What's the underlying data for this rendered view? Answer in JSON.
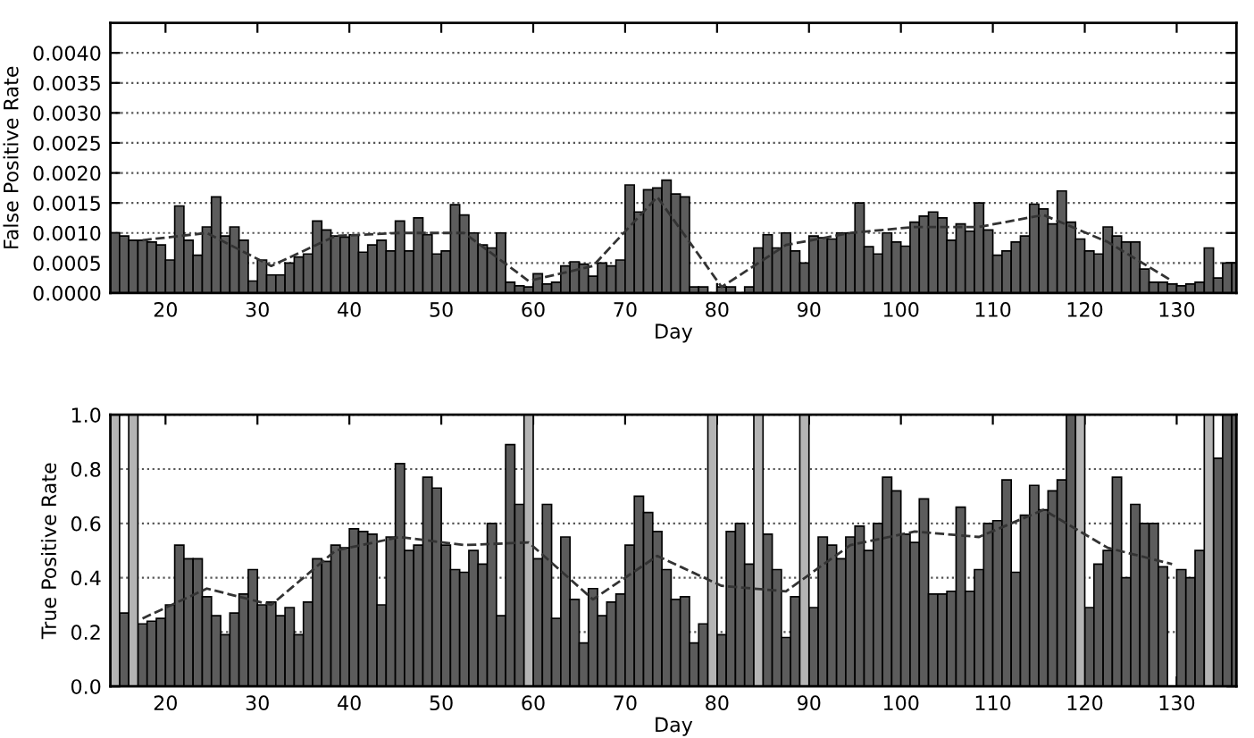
{
  "chart_data": [
    {
      "type": "bar",
      "xlabel": "Day",
      "ylabel": "False Positive Rate",
      "xlim": [
        14,
        136.5
      ],
      "ylim": [
        0,
        0.0045
      ],
      "xticks": [
        20,
        30,
        40,
        50,
        60,
        70,
        80,
        90,
        100,
        110,
        120,
        130
      ],
      "yticks": [
        {
          "value": 0,
          "label": "0.0000"
        },
        {
          "value": 0.0005,
          "label": "0.0005"
        },
        {
          "value": 0.001,
          "label": "0.0010"
        },
        {
          "value": 0.0015,
          "label": "0.0015"
        },
        {
          "value": 0.002,
          "label": "0.0020"
        },
        {
          "value": 0.0025,
          "label": "0.0025"
        },
        {
          "value": 0.003,
          "label": "0.0030"
        },
        {
          "value": 0.0035,
          "label": "0.0035"
        },
        {
          "value": 0.004,
          "label": "0.0040"
        }
      ],
      "grid": "y",
      "x": [
        14,
        15,
        16,
        17,
        18,
        19,
        20,
        21,
        22,
        23,
        24,
        25,
        26,
        27,
        28,
        29,
        30,
        31,
        32,
        33,
        34,
        35,
        36,
        37,
        38,
        39,
        40,
        41,
        42,
        43,
        44,
        45,
        46,
        47,
        48,
        49,
        50,
        51,
        52,
        53,
        54,
        55,
        56,
        57,
        58,
        59,
        60,
        61,
        62,
        63,
        64,
        65,
        66,
        67,
        68,
        69,
        70,
        71,
        72,
        73,
        74,
        75,
        76,
        77,
        78,
        79,
        80,
        81,
        82,
        83,
        84,
        85,
        86,
        87,
        88,
        89,
        90,
        91,
        92,
        93,
        94,
        95,
        96,
        97,
        98,
        99,
        100,
        101,
        102,
        103,
        104,
        105,
        106,
        107,
        108,
        109,
        110,
        111,
        112,
        113,
        114,
        115,
        116,
        117,
        118,
        119,
        120,
        121,
        122,
        123,
        124,
        125,
        126,
        127,
        128,
        129,
        130,
        131,
        132,
        133,
        134,
        135,
        136
      ],
      "series": [
        {
          "color": "#5c5c5c",
          "values": [
            0.001,
            0.00095,
            0.00088,
            0.00088,
            0.00085,
            0.0008,
            0.00055,
            0.00145,
            0.00088,
            0.00063,
            0.0011,
            0.0016,
            0.00095,
            0.0011,
            0.00088,
            0.0002,
            0.00055,
            0.0003,
            0.0003,
            0.0005,
            0.0006,
            0.00065,
            0.0012,
            0.00105,
            0.00095,
            0.00093,
            0.00097,
            0.00068,
            0.0008,
            0.00088,
            0.0007,
            0.0012,
            0.0007,
            0.00125,
            0.00097,
            0.00065,
            0.0007,
            0.00147,
            0.0013,
            0.001,
            0.0008,
            0.00075,
            0.001,
            0.00018,
            0.00012,
            0.0001,
            0.00032,
            0.00015,
            0.00018,
            0.00045,
            0.00052,
            0.00048,
            0.00028,
            0.0005,
            0.00045,
            0.00055,
            0.0018,
            0.00135,
            0.00172,
            0.00175,
            0.00188,
            0.00165,
            0.0016,
            0.0001,
            0.0001,
            null,
            0.0001,
            0.0001,
            null,
            0.0001,
            0.00075,
            0.00097,
            0.00075,
            0.001,
            0.0007,
            0.0005,
            0.00095,
            0.00092,
            0.0009,
            0.001,
            0.001,
            0.0015,
            0.00077,
            0.00065,
            0.001,
            0.00085,
            0.00078,
            0.00118,
            0.00128,
            0.00135,
            0.00125,
            0.00088,
            0.00115,
            0.00103,
            0.0015,
            0.00105,
            0.00063,
            0.0007,
            0.00085,
            0.00095,
            0.00148,
            0.0014,
            0.00115,
            0.0017,
            0.00118,
            0.0009,
            0.0007,
            0.00065,
            0.0011,
            0.00095,
            0.00085,
            0.00085,
            0.0004,
            0.00018,
            0.00018,
            0.00015,
            0.00012,
            0.00015,
            0.00018,
            0.00075,
            0.00025,
            0.0005,
            0.0005
          ]
        },
        {
          "type": "line",
          "color": "#333333",
          "line_style": "dashed",
          "marker": "none",
          "x": [
            17.5,
            24.5,
            31.5,
            38.5,
            45.5,
            52.5,
            59.5,
            66.5,
            73.5,
            80.5,
            87.5,
            94.5,
            101.5,
            108.5,
            115.5,
            122.5,
            129.5
          ],
          "values": [
            0.00088,
            0.001,
            0.00045,
            0.00095,
            0.001,
            0.001,
            0.0002,
            0.00045,
            0.0016,
            0.0001,
            0.0008,
            0.001,
            0.0011,
            0.0011,
            0.0013,
            0.00085,
            0.0002
          ]
        }
      ]
    },
    {
      "type": "bar",
      "xlabel": "Day",
      "ylabel": "True Positive Rate",
      "xlim": [
        14,
        136.5
      ],
      "ylim": [
        0,
        1
      ],
      "xticks": [
        20,
        30,
        40,
        50,
        60,
        70,
        80,
        90,
        100,
        110,
        120,
        130
      ],
      "yticks": [
        {
          "value": 0,
          "label": "0.0"
        },
        {
          "value": 0.2,
          "label": "0.2"
        },
        {
          "value": 0.4,
          "label": "0.4"
        },
        {
          "value": 0.6,
          "label": "0.6"
        },
        {
          "value": 0.8,
          "label": "0.8"
        },
        {
          "value": 1,
          "label": "1.0"
        }
      ],
      "grid": "y",
      "x": [
        14,
        15,
        16,
        17,
        18,
        19,
        20,
        21,
        22,
        23,
        24,
        25,
        26,
        27,
        28,
        29,
        30,
        31,
        32,
        33,
        34,
        35,
        36,
        37,
        38,
        39,
        40,
        41,
        42,
        43,
        44,
        45,
        46,
        47,
        48,
        49,
        50,
        51,
        52,
        53,
        54,
        55,
        56,
        57,
        58,
        59,
        60,
        61,
        62,
        63,
        64,
        65,
        66,
        67,
        68,
        69,
        70,
        71,
        72,
        73,
        74,
        75,
        76,
        77,
        78,
        79,
        80,
        81,
        82,
        83,
        84,
        85,
        86,
        87,
        88,
        89,
        90,
        91,
        92,
        93,
        94,
        95,
        96,
        97,
        98,
        99,
        100,
        101,
        102,
        103,
        104,
        105,
        106,
        107,
        108,
        109,
        110,
        111,
        112,
        113,
        114,
        115,
        116,
        117,
        118,
        119,
        120,
        121,
        122,
        123,
        124,
        125,
        126,
        127,
        128,
        129,
        130,
        131,
        132,
        133,
        134,
        135,
        136
      ],
      "series": [
        {
          "color": "#5c5c5c",
          "values": [
            null,
            0.27,
            null,
            0.23,
            0.24,
            0.25,
            0.3,
            0.52,
            0.47,
            0.47,
            0.33,
            0.26,
            0.19,
            0.27,
            0.34,
            0.43,
            0.3,
            0.31,
            0.26,
            0.29,
            0.19,
            0.31,
            0.47,
            0.46,
            0.52,
            0.51,
            0.58,
            0.57,
            0.56,
            0.3,
            0.55,
            0.82,
            0.5,
            0.52,
            0.77,
            0.73,
            0.52,
            0.43,
            0.42,
            0.5,
            0.45,
            0.6,
            0.26,
            0.89,
            0.67,
            null,
            0.47,
            0.67,
            0.25,
            0.55,
            0.32,
            0.16,
            0.36,
            0.26,
            0.31,
            0.34,
            0.52,
            0.7,
            0.64,
            0.57,
            0.43,
            0.32,
            0.33,
            0.16,
            0.23,
            null,
            0.19,
            0.57,
            0.6,
            0.45,
            null,
            0.56,
            0.43,
            0.18,
            0.33,
            null,
            0.29,
            0.55,
            0.52,
            0.47,
            0.55,
            0.59,
            0.5,
            0.6,
            0.77,
            0.72,
            0.56,
            0.53,
            0.69,
            0.34,
            0.34,
            0.35,
            0.66,
            0.35,
            0.43,
            0.6,
            0.61,
            0.76,
            0.42,
            0.63,
            0.74,
            0.65,
            0.72,
            0.76,
            1.0,
            null,
            0.29,
            0.45,
            0.5,
            0.77,
            0.4,
            0.67,
            0.6,
            0.6,
            0.44,
            null,
            0.43,
            0.4,
            0.5,
            null,
            0.84,
            1.0,
            1.0
          ]
        },
        {
          "color": "#b4b4b4",
          "values": [
            1.0,
            null,
            1.0,
            null,
            null,
            null,
            null,
            null,
            null,
            null,
            null,
            null,
            null,
            null,
            null,
            null,
            null,
            null,
            null,
            null,
            null,
            null,
            null,
            null,
            null,
            null,
            null,
            null,
            null,
            null,
            null,
            null,
            null,
            null,
            null,
            null,
            null,
            null,
            null,
            null,
            null,
            null,
            null,
            null,
            null,
            1.0,
            null,
            null,
            null,
            null,
            null,
            null,
            null,
            null,
            null,
            null,
            null,
            null,
            null,
            null,
            null,
            null,
            null,
            null,
            null,
            1.0,
            null,
            null,
            null,
            null,
            1.0,
            null,
            null,
            null,
            null,
            1.0,
            null,
            null,
            null,
            null,
            null,
            null,
            null,
            null,
            null,
            null,
            null,
            null,
            null,
            null,
            null,
            null,
            null,
            null,
            null,
            null,
            null,
            null,
            null,
            null,
            null,
            null,
            null,
            null,
            null,
            1.0,
            null,
            null,
            null,
            null,
            null,
            null,
            null,
            null,
            null,
            null,
            null,
            null,
            null,
            1.0,
            null,
            null,
            null
          ]
        },
        {
          "type": "line",
          "color": "#333333",
          "line_style": "dashed",
          "marker": "none",
          "x": [
            17.5,
            24.5,
            31.5,
            38.5,
            45.5,
            52.5,
            59.5,
            66.5,
            73.5,
            80.5,
            87.5,
            94.5,
            101.5,
            108.5,
            115.5,
            122.5,
            129.5
          ],
          "values": [
            0.25,
            0.36,
            0.3,
            0.5,
            0.55,
            0.52,
            0.53,
            0.32,
            0.48,
            0.37,
            0.35,
            0.52,
            0.57,
            0.55,
            0.65,
            0.51,
            0.45
          ]
        }
      ]
    }
  ]
}
